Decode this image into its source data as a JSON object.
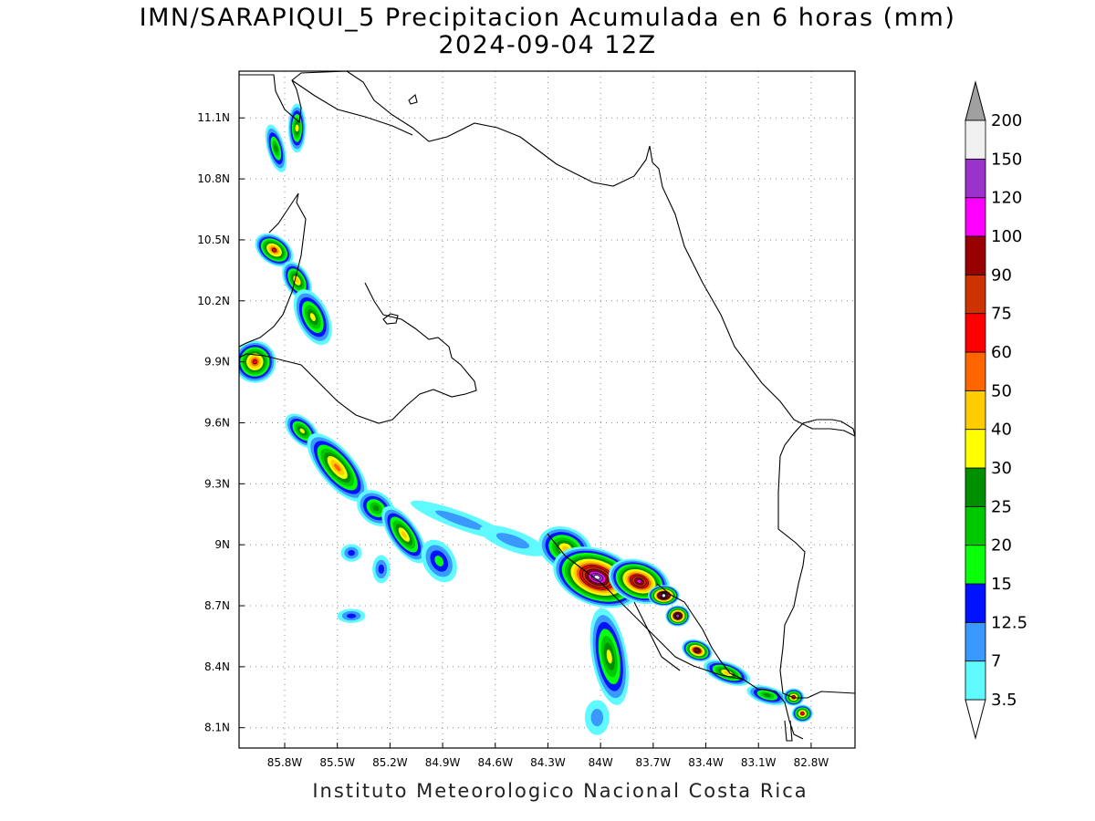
{
  "title": {
    "line1": "IMN/SARAPIQUI_5 Precipitacion Acumulada en 6 horas (mm)",
    "line2": "2024-09-04 12Z"
  },
  "footer": "Instituto Meteorologico Nacional Costa Rica",
  "map": {
    "lon_range": [
      -86.06,
      -82.55
    ],
    "lat_range": [
      8.0,
      11.33
    ],
    "x_ticks": [
      {
        "lon": -85.8,
        "label": "85.8W"
      },
      {
        "lon": -85.5,
        "label": "85.5W"
      },
      {
        "lon": -85.2,
        "label": "85.2W"
      },
      {
        "lon": -84.9,
        "label": "84.9W"
      },
      {
        "lon": -84.6,
        "label": "84.6W"
      },
      {
        "lon": -84.3,
        "label": "84.3W"
      },
      {
        "lon": -84.0,
        "label": "84W"
      },
      {
        "lon": -83.7,
        "label": "83.7W"
      },
      {
        "lon": -83.4,
        "label": "83.4W"
      },
      {
        "lon": -83.1,
        "label": "83.1W"
      },
      {
        "lon": -82.8,
        "label": "82.8W"
      }
    ],
    "y_ticks": [
      {
        "lat": 11.1,
        "label": "11.1N"
      },
      {
        "lat": 10.8,
        "label": "10.8N"
      },
      {
        "lat": 10.5,
        "label": "10.5N"
      },
      {
        "lat": 10.2,
        "label": "10.2N"
      },
      {
        "lat": 9.9,
        "label": "9.9N"
      },
      {
        "lat": 9.6,
        "label": "9.6N"
      },
      {
        "lat": 9.3,
        "label": "9.3N"
      },
      {
        "lat": 9.0,
        "label": "9N"
      },
      {
        "lat": 8.7,
        "label": "8.7N"
      },
      {
        "lat": 8.4,
        "label": "8.4N"
      },
      {
        "lat": 8.1,
        "label": "8.1N"
      }
    ],
    "grid": "dotted"
  },
  "colorbar": {
    "under_color": "#ffffff",
    "over_color": "#a0a0a0",
    "levels": [
      "3.5",
      "7",
      "12.5",
      "15",
      "20",
      "25",
      "30",
      "40",
      "50",
      "60",
      "75",
      "90",
      "100",
      "120",
      "150",
      "200"
    ],
    "colors": [
      "#5ffaff",
      "#3a99ff",
      "#0012ff",
      "#0aff0a",
      "#00c800",
      "#008f00",
      "#ffff00",
      "#ffcc00",
      "#ff6600",
      "#ff0000",
      "#cc3300",
      "#990000",
      "#ff00ff",
      "#9933cc",
      "#f0f0f0"
    ]
  },
  "precip_cells": [
    {
      "lon": -85.85,
      "lat": 10.95,
      "rx": 0.05,
      "ry": 0.14,
      "rot": -15,
      "peak": 25
    },
    {
      "lon": -85.73,
      "lat": 11.05,
      "rx": 0.05,
      "ry": 0.14,
      "rot": 0,
      "peak": 35
    },
    {
      "lon": -85.86,
      "lat": 10.45,
      "rx": 0.08,
      "ry": 0.12,
      "rot": -55,
      "peak": 70
    },
    {
      "lon": -85.73,
      "lat": 10.3,
      "rx": 0.07,
      "ry": 0.12,
      "rot": -30,
      "peak": 40
    },
    {
      "lon": -85.64,
      "lat": 10.12,
      "rx": 0.09,
      "ry": 0.17,
      "rot": -25,
      "peak": 35
    },
    {
      "lon": -85.97,
      "lat": 9.9,
      "rx": 0.12,
      "ry": 0.12,
      "rot": -50,
      "peak": 65
    },
    {
      "lon": -85.7,
      "lat": 9.56,
      "rx": 0.12,
      "ry": 0.07,
      "rot": 45,
      "peak": 35
    },
    {
      "lon": -85.5,
      "lat": 9.38,
      "rx": 0.24,
      "ry": 0.1,
      "rot": 50,
      "peak": 55
    },
    {
      "lon": -85.28,
      "lat": 9.18,
      "rx": 0.12,
      "ry": 0.09,
      "rot": 40,
      "peak": 25
    },
    {
      "lon": -85.12,
      "lat": 9.05,
      "rx": 0.08,
      "ry": 0.19,
      "rot": -35,
      "peak": 45
    },
    {
      "lon": -84.92,
      "lat": 8.92,
      "rx": 0.09,
      "ry": 0.13,
      "rot": -30,
      "peak": 15
    },
    {
      "lon": -85.25,
      "lat": 8.88,
      "rx": 0.05,
      "ry": 0.08,
      "rot": 0,
      "peak": 13
    },
    {
      "lon": -85.42,
      "lat": 8.96,
      "rx": 0.06,
      "ry": 0.05,
      "rot": 0,
      "peak": 13
    },
    {
      "lon": -85.42,
      "lat": 8.65,
      "rx": 0.08,
      "ry": 0.04,
      "rot": 0,
      "peak": 13
    },
    {
      "lon": -84.8,
      "lat": 9.12,
      "rx": 0.3,
      "ry": 0.05,
      "rot": 20,
      "peak": 9
    },
    {
      "lon": -84.5,
      "lat": 9.02,
      "rx": 0.2,
      "ry": 0.06,
      "rot": 20,
      "peak": 9
    },
    {
      "lon": -84.2,
      "lat": 8.98,
      "rx": 0.16,
      "ry": 0.12,
      "rot": 25,
      "peak": 45
    },
    {
      "lon": -84.02,
      "lat": 8.84,
      "rx": 0.26,
      "ry": 0.16,
      "rot": 20,
      "peak": 160
    },
    {
      "lon": -83.78,
      "lat": 8.82,
      "rx": 0.18,
      "ry": 0.12,
      "rot": 20,
      "peak": 110
    },
    {
      "lon": -83.64,
      "lat": 8.75,
      "rx": 0.09,
      "ry": 0.06,
      "rot": 0,
      "peak": 160
    },
    {
      "lon": -83.56,
      "lat": 8.65,
      "rx": 0.07,
      "ry": 0.06,
      "rot": 0,
      "peak": 130
    },
    {
      "lon": -83.95,
      "lat": 8.45,
      "rx": 0.1,
      "ry": 0.28,
      "rot": -10,
      "peak": 35
    },
    {
      "lon": -84.02,
      "lat": 8.15,
      "rx": 0.07,
      "ry": 0.1,
      "rot": 0,
      "peak": 8
    },
    {
      "lon": -83.45,
      "lat": 8.48,
      "rx": 0.09,
      "ry": 0.06,
      "rot": 20,
      "peak": 90
    },
    {
      "lon": -83.28,
      "lat": 8.37,
      "rx": 0.14,
      "ry": 0.06,
      "rot": 20,
      "peak": 45
    },
    {
      "lon": -83.05,
      "lat": 8.26,
      "rx": 0.12,
      "ry": 0.05,
      "rot": 15,
      "peak": 25
    },
    {
      "lon": -82.9,
      "lat": 8.25,
      "rx": 0.06,
      "ry": 0.05,
      "rot": 0,
      "peak": 70
    },
    {
      "lon": -82.85,
      "lat": 8.17,
      "rx": 0.06,
      "ry": 0.05,
      "rot": 0,
      "peak": 70
    }
  ]
}
